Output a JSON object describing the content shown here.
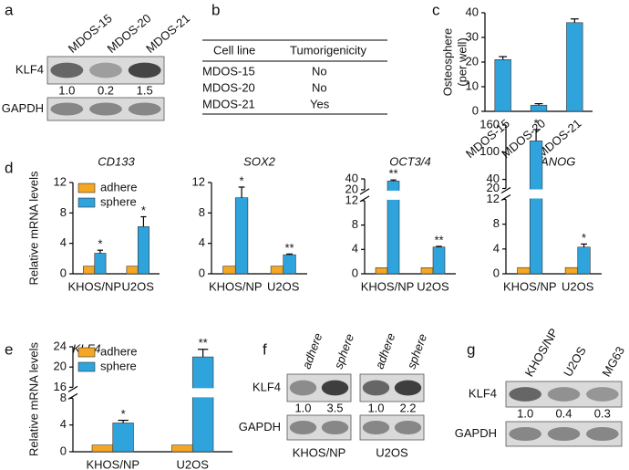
{
  "panel_labels": [
    "a",
    "b",
    "c",
    "d",
    "e",
    "f",
    "g"
  ],
  "table": {
    "header": [
      "Cell line",
      "Tumorigenicity"
    ],
    "rows": [
      [
        "MDOS-15",
        "No"
      ],
      [
        "MDOS-20",
        "No"
      ],
      [
        "MDOS-21",
        "Yes"
      ]
    ]
  },
  "blots": [
    {
      "lanes": [
        "MDOS-15",
        "MDOS-20",
        "MDOS-21"
      ],
      "rows": [
        "KLF4",
        "GAPDH"
      ],
      "quant": [
        "1.0",
        "0.2",
        "1.5"
      ]
    },
    {
      "lanes": [
        "adhere",
        "sphere"
      ],
      "rows": [
        "KLF4",
        "GAPDH"
      ],
      "quant": [
        "1.0",
        "3.5"
      ],
      "caption": "KHOS/NP"
    },
    {
      "lanes": [
        "adhere",
        "sphere"
      ],
      "quant": [
        "1.0",
        "2.2"
      ],
      "caption": "U2OS"
    },
    {
      "lanes": [
        "KHOS/NP",
        "U2OS",
        "MG63"
      ],
      "rows": [
        "KLF4",
        "GAPDH"
      ],
      "quant": [
        "1.0",
        "0.4",
        "0.3"
      ]
    }
  ],
  "chart_data": [
    {
      "type": "bar",
      "ylabel": [
        "Osteosphere",
        "(per well)"
      ],
      "categories": [
        "MDOS-15",
        "MDOS-20",
        "MDOS-21"
      ],
      "series": [
        {
          "color": "#2ea3dc",
          "values": [
            21,
            2.5,
            36
          ],
          "errors": [
            1.2,
            0.6,
            1.5
          ]
        }
      ],
      "ylim": [
        0,
        40
      ],
      "yticks": [
        0,
        10,
        20,
        30,
        40
      ]
    },
    {
      "type": "bar",
      "title": "CD133",
      "ylabel": [
        "Relative mRNA levels"
      ],
      "legend": "upper left",
      "categories": [
        "KHOS/NP",
        "U2OS"
      ],
      "series": [
        {
          "name": "adhere",
          "color": "#f5a623",
          "values": [
            1,
            1
          ]
        },
        {
          "name": "sphere",
          "color": "#2ea3dc",
          "values": [
            2.7,
            6.2
          ],
          "errors": [
            0.4,
            1.3
          ],
          "annotations": [
            "*",
            "*"
          ]
        }
      ],
      "ylim": [
        0,
        12
      ],
      "yticks": [
        0,
        4,
        8,
        12
      ]
    },
    {
      "type": "bar",
      "title": "SOX2",
      "categories": [
        "KHOS/NP",
        "U2OS"
      ],
      "series": [
        {
          "name": "adhere",
          "color": "#f5a623",
          "values": [
            1,
            1
          ]
        },
        {
          "name": "sphere",
          "color": "#2ea3dc",
          "values": [
            10,
            2.5
          ],
          "errors": [
            1.4,
            0.1
          ],
          "annotations": [
            "*",
            "**"
          ]
        }
      ],
      "ylim": [
        0,
        12
      ],
      "yticks": [
        0,
        4,
        8,
        12
      ]
    },
    {
      "type": "bar",
      "title": "OCT3/4",
      "categories": [
        "KHOS/NP",
        "U2OS"
      ],
      "series": [
        {
          "name": "adhere",
          "color": "#f5a623",
          "values": [
            1,
            1
          ]
        },
        {
          "name": "sphere",
          "color": "#2ea3dc",
          "values": [
            36,
            4.4
          ],
          "errors": [
            2,
            0.1
          ],
          "annotations": [
            "**",
            "**"
          ]
        }
      ],
      "ylim": [
        0,
        40
      ],
      "ybreak": [
        12,
        20
      ],
      "yticks": [
        0,
        4,
        8,
        12,
        20,
        40
      ]
    },
    {
      "type": "bar",
      "title": "NANOG",
      "categories": [
        "KHOS/NP",
        "U2OS"
      ],
      "series": [
        {
          "name": "adhere",
          "color": "#f5a623",
          "values": [
            1,
            1
          ]
        },
        {
          "name": "sphere",
          "color": "#2ea3dc",
          "values": [
            125,
            4.3
          ],
          "errors": [
            25,
            0.5
          ],
          "annotations": [
            "*",
            "*"
          ]
        }
      ],
      "ylim": [
        0,
        160
      ],
      "ybreak": [
        12,
        20
      ],
      "yticks": [
        0,
        4,
        8,
        12,
        20,
        40,
        100,
        160
      ]
    },
    {
      "type": "bar",
      "title": "KLF4",
      "ylabel": [
        "Relative mRNA levels"
      ],
      "legend": "upper left",
      "categories": [
        "KHOS/NP",
        "U2OS"
      ],
      "series": [
        {
          "name": "adhere",
          "color": "#f5a623",
          "values": [
            1,
            1
          ]
        },
        {
          "name": "sphere",
          "color": "#2ea3dc",
          "values": [
            4.3,
            22
          ],
          "errors": [
            0.4,
            1.5
          ],
          "annotations": [
            "*",
            "**"
          ]
        }
      ],
      "ylim": [
        0,
        24
      ],
      "ybreak": [
        8,
        16
      ],
      "yticks": [
        0,
        4,
        8,
        16,
        20,
        24
      ]
    }
  ]
}
